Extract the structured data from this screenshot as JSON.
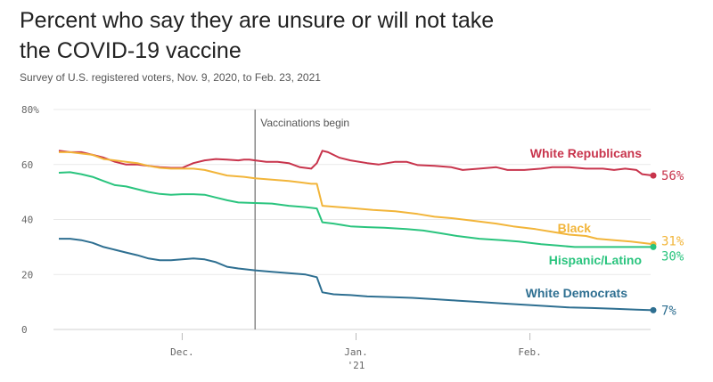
{
  "header": {
    "title": "Percent who say they are unsure or will not take the COVID-19 vaccine",
    "subtitle": "Survey of U.S. registered voters, Nov. 9, 2020, to Feb. 23, 2021"
  },
  "chart_data": {
    "type": "line",
    "title": "Percent who say they are unsure or will not take the COVID-19 vaccine",
    "subtitle": "Survey of U.S. registered voters, Nov. 9, 2020, to Feb. 23, 2021",
    "xlabel": "",
    "ylabel": "",
    "x_range": [
      "2020-11-09",
      "2021-02-23"
    ],
    "ylim": [
      0,
      80
    ],
    "y_ticks": [
      {
        "value": 80,
        "label": "80%"
      },
      {
        "value": 60,
        "label": "60"
      },
      {
        "value": 40,
        "label": "40"
      },
      {
        "value": 20,
        "label": "20"
      },
      {
        "value": 0,
        "label": "0"
      }
    ],
    "x_ticks": [
      {
        "date": "2020-12-01",
        "label": "Dec.",
        "sublabel": ""
      },
      {
        "date": "2021-01-01",
        "label": "Jan.",
        "sublabel": "'21"
      },
      {
        "date": "2021-02-01",
        "label": "Feb.",
        "sublabel": ""
      }
    ],
    "grid": true,
    "annotation": {
      "date": "2020-12-14",
      "label": "Vaccinations begin"
    },
    "series": [
      {
        "name": "White Republicans",
        "color": "#c8344c",
        "end_label": "56%",
        "points": [
          [
            "2020-11-09",
            65
          ],
          [
            "2020-11-11",
            64.5
          ],
          [
            "2020-11-13",
            64.5
          ],
          [
            "2020-11-15",
            63.5
          ],
          [
            "2020-11-17",
            62.5
          ],
          [
            "2020-11-19",
            61
          ],
          [
            "2020-11-21",
            60
          ],
          [
            "2020-11-23",
            60
          ],
          [
            "2020-11-25",
            59.5
          ],
          [
            "2020-11-27",
            59
          ],
          [
            "2020-11-29",
            58.8
          ],
          [
            "2020-12-01",
            58.8
          ],
          [
            "2020-12-03",
            60.5
          ],
          [
            "2020-12-05",
            61.5
          ],
          [
            "2020-12-07",
            62
          ],
          [
            "2020-12-09",
            61.8
          ],
          [
            "2020-12-11",
            61.5
          ],
          [
            "2020-12-12",
            61.8
          ],
          [
            "2020-12-13",
            61.8
          ],
          [
            "2020-12-14",
            61.5
          ],
          [
            "2020-12-16",
            61
          ],
          [
            "2020-12-18",
            61
          ],
          [
            "2020-12-20",
            60.5
          ],
          [
            "2020-12-22",
            59
          ],
          [
            "2020-12-24",
            58.5
          ],
          [
            "2020-12-25",
            60.5
          ],
          [
            "2020-12-26",
            65
          ],
          [
            "2020-12-27",
            64.5
          ],
          [
            "2020-12-29",
            62.5
          ],
          [
            "2020-12-31",
            61.5
          ],
          [
            "2021-01-03",
            60.5
          ],
          [
            "2021-01-05",
            60
          ],
          [
            "2021-01-08",
            61
          ],
          [
            "2021-01-10",
            61
          ],
          [
            "2021-01-12",
            59.8
          ],
          [
            "2021-01-15",
            59.5
          ],
          [
            "2021-01-18",
            59
          ],
          [
            "2021-01-20",
            58
          ],
          [
            "2021-01-23",
            58.5
          ],
          [
            "2021-01-26",
            59
          ],
          [
            "2021-01-28",
            58
          ],
          [
            "2021-01-31",
            58
          ],
          [
            "2021-02-03",
            58.5
          ],
          [
            "2021-02-05",
            59
          ],
          [
            "2021-02-08",
            59
          ],
          [
            "2021-02-11",
            58.5
          ],
          [
            "2021-02-14",
            58.5
          ],
          [
            "2021-02-16",
            58
          ],
          [
            "2021-02-18",
            58.5
          ],
          [
            "2021-02-20",
            58
          ],
          [
            "2021-02-21",
            56.5
          ],
          [
            "2021-02-23",
            56
          ]
        ]
      },
      {
        "name": "Black",
        "color": "#f2b53a",
        "end_label": "31%",
        "points": [
          [
            "2020-11-09",
            64.5
          ],
          [
            "2020-11-11",
            64.5
          ],
          [
            "2020-11-13",
            64
          ],
          [
            "2020-11-15",
            63.5
          ],
          [
            "2020-11-17",
            62
          ],
          [
            "2020-11-19",
            61.5
          ],
          [
            "2020-11-21",
            61
          ],
          [
            "2020-11-23",
            60.5
          ],
          [
            "2020-11-25",
            59.5
          ],
          [
            "2020-11-27",
            58.8
          ],
          [
            "2020-11-29",
            58.5
          ],
          [
            "2020-12-01",
            58.5
          ],
          [
            "2020-12-03",
            58.5
          ],
          [
            "2020-12-05",
            58
          ],
          [
            "2020-12-07",
            57
          ],
          [
            "2020-12-09",
            56
          ],
          [
            "2020-12-12",
            55.5
          ],
          [
            "2020-12-14",
            55
          ],
          [
            "2020-12-17",
            54.5
          ],
          [
            "2020-12-20",
            54
          ],
          [
            "2020-12-22",
            53.5
          ],
          [
            "2020-12-24",
            53
          ],
          [
            "2020-12-25",
            53
          ],
          [
            "2020-12-26",
            45
          ],
          [
            "2020-12-29",
            44.5
          ],
          [
            "2021-01-01",
            44
          ],
          [
            "2021-01-04",
            43.5
          ],
          [
            "2021-01-08",
            43
          ],
          [
            "2021-01-12",
            42
          ],
          [
            "2021-01-15",
            41
          ],
          [
            "2021-01-18",
            40.5
          ],
          [
            "2021-01-22",
            39.5
          ],
          [
            "2021-01-26",
            38.5
          ],
          [
            "2021-01-29",
            37.5
          ],
          [
            "2021-02-02",
            36.5
          ],
          [
            "2021-02-05",
            35.5
          ],
          [
            "2021-02-08",
            34.5
          ],
          [
            "2021-02-11",
            34
          ],
          [
            "2021-02-13",
            33
          ],
          [
            "2021-02-16",
            32.5
          ],
          [
            "2021-02-19",
            32
          ],
          [
            "2021-02-21",
            31.5
          ],
          [
            "2021-02-23",
            31
          ]
        ]
      },
      {
        "name": "Hispanic/Latino",
        "color": "#2ac47e",
        "end_label": "30%",
        "points": [
          [
            "2020-11-09",
            57
          ],
          [
            "2020-11-11",
            57.2
          ],
          [
            "2020-11-13",
            56.5
          ],
          [
            "2020-11-15",
            55.5
          ],
          [
            "2020-11-17",
            54
          ],
          [
            "2020-11-19",
            52.5
          ],
          [
            "2020-11-21",
            52
          ],
          [
            "2020-11-23",
            51
          ],
          [
            "2020-11-25",
            50
          ],
          [
            "2020-11-27",
            49.3
          ],
          [
            "2020-11-29",
            49
          ],
          [
            "2020-12-01",
            49.2
          ],
          [
            "2020-12-03",
            49.2
          ],
          [
            "2020-12-05",
            49
          ],
          [
            "2020-12-07",
            48
          ],
          [
            "2020-12-09",
            47
          ],
          [
            "2020-12-11",
            46.2
          ],
          [
            "2020-12-14",
            46
          ],
          [
            "2020-12-17",
            45.8
          ],
          [
            "2020-12-20",
            45
          ],
          [
            "2020-12-23",
            44.5
          ],
          [
            "2020-12-25",
            44
          ],
          [
            "2020-12-26",
            39
          ],
          [
            "2020-12-28",
            38.5
          ],
          [
            "2020-12-31",
            37.5
          ],
          [
            "2021-01-03",
            37.2
          ],
          [
            "2021-01-06",
            37
          ],
          [
            "2021-01-10",
            36.5
          ],
          [
            "2021-01-13",
            36
          ],
          [
            "2021-01-16",
            35
          ],
          [
            "2021-01-19",
            34
          ],
          [
            "2021-01-23",
            33
          ],
          [
            "2021-01-27",
            32.5
          ],
          [
            "2021-01-30",
            32
          ],
          [
            "2021-02-03",
            31
          ],
          [
            "2021-02-06",
            30.5
          ],
          [
            "2021-02-09",
            30
          ],
          [
            "2021-02-13",
            30
          ],
          [
            "2021-02-17",
            30
          ],
          [
            "2021-02-20",
            30
          ],
          [
            "2021-02-23",
            30
          ]
        ]
      },
      {
        "name": "White Democrats",
        "color": "#2e6f91",
        "end_label": "7%",
        "points": [
          [
            "2020-11-09",
            33
          ],
          [
            "2020-11-11",
            33
          ],
          [
            "2020-11-13",
            32.5
          ],
          [
            "2020-11-15",
            31.5
          ],
          [
            "2020-11-17",
            30
          ],
          [
            "2020-11-19",
            29
          ],
          [
            "2020-11-21",
            28
          ],
          [
            "2020-11-23",
            27
          ],
          [
            "2020-11-25",
            25.8
          ],
          [
            "2020-11-27",
            25.2
          ],
          [
            "2020-11-29",
            25.2
          ],
          [
            "2020-12-01",
            25.5
          ],
          [
            "2020-12-03",
            25.8
          ],
          [
            "2020-12-05",
            25.5
          ],
          [
            "2020-12-07",
            24.5
          ],
          [
            "2020-12-09",
            22.8
          ],
          [
            "2020-12-11",
            22.2
          ],
          [
            "2020-12-14",
            21.5
          ],
          [
            "2020-12-17",
            21
          ],
          [
            "2020-12-20",
            20.5
          ],
          [
            "2020-12-23",
            20
          ],
          [
            "2020-12-25",
            19
          ],
          [
            "2020-12-26",
            13.5
          ],
          [
            "2020-12-28",
            12.8
          ],
          [
            "2020-12-31",
            12.5
          ],
          [
            "2021-01-03",
            12
          ],
          [
            "2021-01-07",
            11.8
          ],
          [
            "2021-01-11",
            11.5
          ],
          [
            "2021-01-15",
            11
          ],
          [
            "2021-01-19",
            10.5
          ],
          [
            "2021-01-23",
            10
          ],
          [
            "2021-01-27",
            9.5
          ],
          [
            "2021-01-31",
            9
          ],
          [
            "2021-02-04",
            8.5
          ],
          [
            "2021-02-08",
            8
          ],
          [
            "2021-02-12",
            7.8
          ],
          [
            "2021-02-16",
            7.5
          ],
          [
            "2021-02-20",
            7.2
          ],
          [
            "2021-02-23",
            7
          ]
        ]
      }
    ]
  }
}
